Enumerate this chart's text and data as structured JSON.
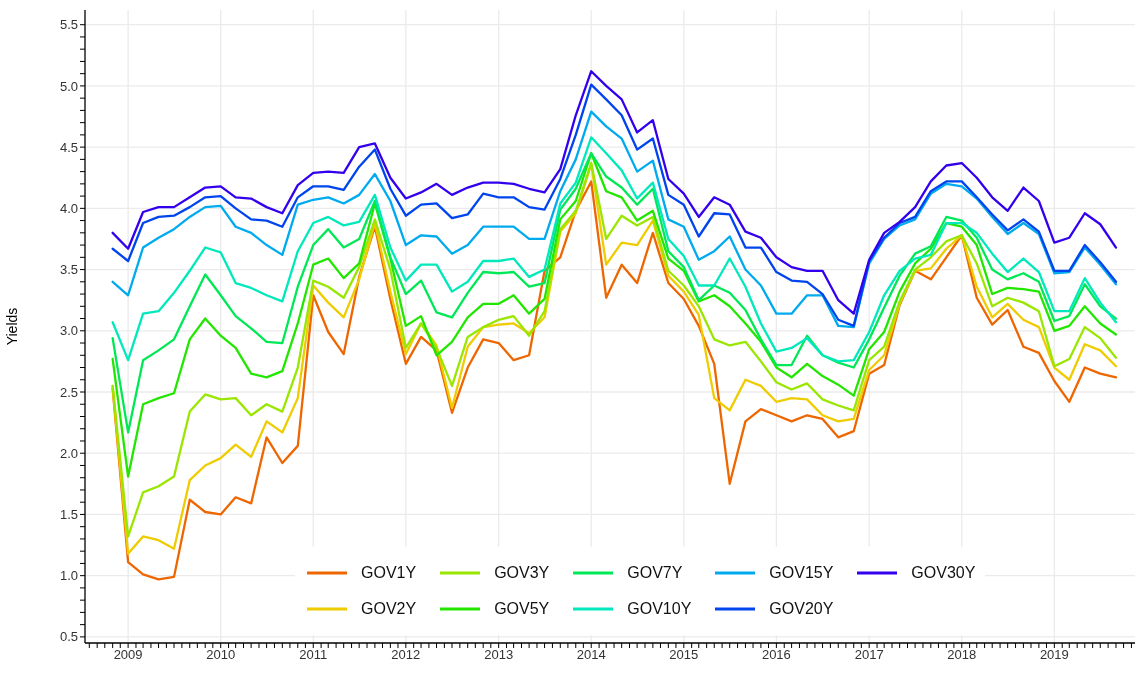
{
  "chart_data": {
    "type": "line",
    "ylabel": "Yields",
    "legend": "bottom",
    "grid": true,
    "xlim": [
      "2008-07-15",
      "2019-11-15"
    ],
    "ylim": [
      0.45,
      5.62
    ],
    "yticks": [
      0.5,
      {
        "value": 1,
        "label": "1.0"
      },
      1.5,
      {
        "value": 2,
        "label": "2.0"
      },
      2.5,
      {
        "value": 3,
        "label": "3.0"
      },
      3.5,
      {
        "value": 4,
        "label": "4.0"
      },
      4.5,
      {
        "value": 5,
        "label": "5.0"
      },
      5.5,
      {
        "value": 0.6,
        "label": null
      },
      {
        "value": 0.7,
        "label": null
      },
      {
        "value": 0.8,
        "label": null
      },
      {
        "value": 0.9,
        "label": null
      },
      {
        "value": 1.1,
        "label": null
      },
      {
        "value": 1.2,
        "label": null
      },
      {
        "value": 1.3,
        "label": null
      },
      {
        "value": 1.4,
        "label": null
      },
      {
        "value": 1.6,
        "label": null
      },
      {
        "value": 1.7,
        "label": null
      },
      {
        "value": 1.8,
        "label": null
      },
      {
        "value": 1.9,
        "label": null
      },
      {
        "value": 2.1,
        "label": null
      },
      {
        "value": 2.2,
        "label": null
      },
      {
        "value": 2.3,
        "label": null
      },
      {
        "value": 2.4,
        "label": null
      },
      {
        "value": 2.6,
        "label": null
      },
      {
        "value": 2.7,
        "label": null
      },
      {
        "value": 2.8,
        "label": null
      },
      {
        "value": 2.9,
        "label": null
      },
      {
        "value": 3.1,
        "label": null
      },
      {
        "value": 3.2,
        "label": null
      },
      {
        "value": 3.3,
        "label": null
      },
      {
        "value": 3.4,
        "label": null
      },
      {
        "value": 3.6,
        "label": null
      },
      {
        "value": 3.7,
        "label": null
      },
      {
        "value": 3.8,
        "label": null
      },
      {
        "value": 3.9,
        "label": null
      },
      {
        "value": 4.1,
        "label": null
      },
      {
        "value": 4.2,
        "label": null
      },
      {
        "value": 4.3,
        "label": null
      },
      {
        "value": 4.4,
        "label": null
      },
      {
        "value": 4.6,
        "label": null
      },
      {
        "value": 4.7,
        "label": null
      },
      {
        "value": 4.8,
        "label": null
      },
      {
        "value": 4.9,
        "label": null
      },
      {
        "value": 5.1,
        "label": null
      },
      {
        "value": 5.2,
        "label": null
      },
      {
        "value": 5.3,
        "label": null
      },
      {
        "value": 5.4,
        "label": null
      }
    ],
    "xticks": [
      "2009",
      "2010",
      "2011",
      "2012",
      "2013",
      "2014",
      "2015",
      "2016",
      "2017",
      "2018",
      "2019",
      {
        "value": "2008-08",
        "label": null
      },
      {
        "value": "2008-09",
        "label": null
      },
      {
        "value": "2008-10",
        "label": null
      },
      {
        "value": "2008-11",
        "label": null
      },
      {
        "value": "2008-12",
        "label": null
      },
      {
        "value": "2009-02",
        "label": null
      },
      {
        "value": "2009-03",
        "label": null
      },
      {
        "value": "2009-04",
        "label": null
      },
      {
        "value": "2009-05",
        "label": null
      },
      {
        "value": "2009-06",
        "label": null
      },
      {
        "value": "2009-07",
        "label": null
      },
      {
        "value": "2009-08",
        "label": null
      },
      {
        "value": "2009-09",
        "label": null
      },
      {
        "value": "2009-10",
        "label": null
      },
      {
        "value": "2009-11",
        "label": null
      },
      {
        "value": "2009-12",
        "label": null
      },
      {
        "value": "2010-02",
        "label": null
      },
      {
        "value": "2010-03",
        "label": null
      },
      {
        "value": "2010-04",
        "label": null
      },
      {
        "value": "2010-05",
        "label": null
      },
      {
        "value": "2010-06",
        "label": null
      },
      {
        "value": "2010-07",
        "label": null
      },
      {
        "value": "2010-08",
        "label": null
      },
      {
        "value": "2010-09",
        "label": null
      },
      {
        "value": "2010-10",
        "label": null
      },
      {
        "value": "2010-11",
        "label": null
      },
      {
        "value": "2010-12",
        "label": null
      },
      {
        "value": "2011-02",
        "label": null
      },
      {
        "value": "2011-03",
        "label": null
      },
      {
        "value": "2011-04",
        "label": null
      },
      {
        "value": "2011-05",
        "label": null
      },
      {
        "value": "2011-06",
        "label": null
      },
      {
        "value": "2011-07",
        "label": null
      },
      {
        "value": "2011-08",
        "label": null
      },
      {
        "value": "2011-09",
        "label": null
      },
      {
        "value": "2011-10",
        "label": null
      },
      {
        "value": "2011-11",
        "label": null
      },
      {
        "value": "2011-12",
        "label": null
      },
      {
        "value": "2012-02",
        "label": null
      },
      {
        "value": "2012-03",
        "label": null
      },
      {
        "value": "2012-04",
        "label": null
      },
      {
        "value": "2012-05",
        "label": null
      },
      {
        "value": "2012-06",
        "label": null
      },
      {
        "value": "2012-07",
        "label": null
      },
      {
        "value": "2012-08",
        "label": null
      },
      {
        "value": "2012-09",
        "label": null
      },
      {
        "value": "2012-10",
        "label": null
      },
      {
        "value": "2012-11",
        "label": null
      },
      {
        "value": "2012-12",
        "label": null
      },
      {
        "value": "2013-02",
        "label": null
      },
      {
        "value": "2013-03",
        "label": null
      },
      {
        "value": "2013-04",
        "label": null
      },
      {
        "value": "2013-05",
        "label": null
      },
      {
        "value": "2013-06",
        "label": null
      },
      {
        "value": "2013-07",
        "label": null
      },
      {
        "value": "2013-08",
        "label": null
      },
      {
        "value": "2013-09",
        "label": null
      },
      {
        "value": "2013-10",
        "label": null
      },
      {
        "value": "2013-11",
        "label": null
      },
      {
        "value": "2013-12",
        "label": null
      },
      {
        "value": "2014-02",
        "label": null
      },
      {
        "value": "2014-03",
        "label": null
      },
      {
        "value": "2014-04",
        "label": null
      },
      {
        "value": "2014-05",
        "label": null
      },
      {
        "value": "2014-06",
        "label": null
      },
      {
        "value": "2014-07",
        "label": null
      },
      {
        "value": "2014-08",
        "label": null
      },
      {
        "value": "2014-09",
        "label": null
      },
      {
        "value": "2014-10",
        "label": null
      },
      {
        "value": "2014-11",
        "label": null
      },
      {
        "value": "2014-12",
        "label": null
      },
      {
        "value": "2015-02",
        "label": null
      },
      {
        "value": "2015-03",
        "label": null
      },
      {
        "value": "2015-04",
        "label": null
      },
      {
        "value": "2015-05",
        "label": null
      },
      {
        "value": "2015-06",
        "label": null
      },
      {
        "value": "2015-07",
        "label": null
      },
      {
        "value": "2015-08",
        "label": null
      },
      {
        "value": "2015-09",
        "label": null
      },
      {
        "value": "2015-10",
        "label": null
      },
      {
        "value": "2015-11",
        "label": null
      },
      {
        "value": "2015-12",
        "label": null
      },
      {
        "value": "2016-02",
        "label": null
      },
      {
        "value": "2016-03",
        "label": null
      },
      {
        "value": "2016-04",
        "label": null
      },
      {
        "value": "2016-05",
        "label": null
      },
      {
        "value": "2016-06",
        "label": null
      },
      {
        "value": "2016-07",
        "label": null
      },
      {
        "value": "2016-08",
        "label": null
      },
      {
        "value": "2016-09",
        "label": null
      },
      {
        "value": "2016-10",
        "label": null
      },
      {
        "value": "2016-11",
        "label": null
      },
      {
        "value": "2016-12",
        "label": null
      },
      {
        "value": "2017-02",
        "label": null
      },
      {
        "value": "2017-03",
        "label": null
      },
      {
        "value": "2017-04",
        "label": null
      },
      {
        "value": "2017-05",
        "label": null
      },
      {
        "value": "2017-06",
        "label": null
      },
      {
        "value": "2017-07",
        "label": null
      },
      {
        "value": "2017-08",
        "label": null
      },
      {
        "value": "2017-09",
        "label": null
      },
      {
        "value": "2017-10",
        "label": null
      },
      {
        "value": "2017-11",
        "label": null
      },
      {
        "value": "2017-12",
        "label": null
      },
      {
        "value": "2018-02",
        "label": null
      },
      {
        "value": "2018-03",
        "label": null
      },
      {
        "value": "2018-04",
        "label": null
      },
      {
        "value": "2018-05",
        "label": null
      },
      {
        "value": "2018-06",
        "label": null
      },
      {
        "value": "2018-07",
        "label": null
      },
      {
        "value": "2018-08",
        "label": null
      },
      {
        "value": "2018-09",
        "label": null
      },
      {
        "value": "2018-10",
        "label": null
      },
      {
        "value": "2018-11",
        "label": null
      },
      {
        "value": "2018-12",
        "label": null
      },
      {
        "value": "2019-02",
        "label": null
      },
      {
        "value": "2019-03",
        "label": null
      },
      {
        "value": "2019-04",
        "label": null
      },
      {
        "value": "2019-05",
        "label": null
      },
      {
        "value": "2019-06",
        "label": null
      },
      {
        "value": "2019-07",
        "label": null
      },
      {
        "value": "2019-08",
        "label": null
      },
      {
        "value": "2019-09",
        "label": null
      },
      {
        "value": "2019-10",
        "label": null
      },
      {
        "value": "2019-11",
        "label": null
      }
    ],
    "x": [
      "2008-11",
      "2009-01",
      "2009-03",
      "2009-05",
      "2009-07",
      "2009-09",
      "2009-11",
      "2010-01",
      "2010-03",
      "2010-05",
      "2010-07",
      "2010-09",
      "2010-11",
      "2011-01",
      "2011-03",
      "2011-05",
      "2011-07",
      "2011-09",
      "2011-11",
      "2012-01",
      "2012-03",
      "2012-05",
      "2012-07",
      "2012-09",
      "2012-11",
      "2013-01",
      "2013-03",
      "2013-05",
      "2013-07",
      "2013-09",
      "2013-11",
      "2014-01",
      "2014-03",
      "2014-05",
      "2014-07",
      "2014-09",
      "2014-11",
      "2015-01",
      "2015-03",
      "2015-05",
      "2015-07",
      "2015-09",
      "2015-11",
      "2016-01",
      "2016-03",
      "2016-05",
      "2016-07",
      "2016-09",
      "2016-11",
      "2017-01",
      "2017-03",
      "2017-05",
      "2017-07",
      "2017-09",
      "2017-11",
      "2018-01",
      "2018-03",
      "2018-05",
      "2018-07",
      "2018-09",
      "2018-11",
      "2019-01",
      "2019-03",
      "2019-05",
      "2019-07",
      "2019-09"
    ],
    "series": [
      {
        "name": "GOV1Y",
        "color": "#ee6600",
        "values": [
          2.53,
          1.11,
          1.01,
          0.97,
          0.99,
          1.62,
          1.52,
          1.5,
          1.64,
          1.59,
          2.13,
          1.92,
          2.06,
          3.29,
          2.99,
          2.81,
          3.44,
          3.85,
          3.26,
          2.73,
          2.95,
          2.84,
          2.33,
          2.7,
          2.93,
          2.9,
          2.76,
          2.8,
          3.49,
          3.6,
          3.98,
          4.22,
          3.27,
          3.54,
          3.39,
          3.8,
          3.39,
          3.26,
          3.04,
          2.73,
          1.75,
          2.26,
          2.36,
          2.31,
          2.26,
          2.31,
          2.28,
          2.13,
          2.18,
          2.65,
          2.72,
          3.21,
          3.49,
          3.42,
          3.6,
          3.78,
          3.27,
          3.05,
          3.17,
          2.87,
          2.82,
          2.59,
          2.42,
          2.7,
          2.65,
          2.62
        ]
      },
      {
        "name": "GOV2Y",
        "color": "#eecc00",
        "values": [
          2.55,
          1.18,
          1.32,
          1.29,
          1.22,
          1.78,
          1.9,
          1.96,
          2.07,
          1.97,
          2.26,
          2.17,
          2.45,
          3.37,
          3.23,
          3.11,
          3.42,
          3.88,
          3.32,
          2.81,
          3.06,
          2.88,
          2.37,
          2.87,
          3.03,
          3.05,
          3.06,
          2.98,
          3.11,
          3.81,
          3.96,
          4.36,
          3.54,
          3.72,
          3.7,
          3.9,
          3.45,
          3.32,
          3.13,
          2.45,
          2.35,
          2.6,
          2.55,
          2.42,
          2.45,
          2.44,
          2.31,
          2.26,
          2.28,
          2.68,
          2.8,
          3.22,
          3.49,
          3.51,
          3.67,
          3.78,
          3.36,
          3.11,
          3.22,
          3.09,
          3.03,
          2.7,
          2.6,
          2.89,
          2.84,
          2.71
        ]
      },
      {
        "name": "GOV3Y",
        "color": "#99e600",
        "values": [
          2.55,
          1.32,
          1.68,
          1.73,
          1.81,
          2.34,
          2.48,
          2.44,
          2.45,
          2.31,
          2.4,
          2.34,
          2.7,
          3.41,
          3.36,
          3.27,
          3.52,
          3.91,
          3.5,
          2.86,
          3.06,
          2.86,
          2.55,
          2.95,
          3.03,
          3.09,
          3.12,
          2.96,
          3.16,
          3.83,
          3.98,
          4.37,
          3.75,
          3.94,
          3.86,
          3.93,
          3.49,
          3.37,
          3.2,
          2.93,
          2.88,
          2.91,
          2.75,
          2.58,
          2.52,
          2.57,
          2.44,
          2.39,
          2.35,
          2.76,
          2.87,
          3.24,
          3.5,
          3.6,
          3.73,
          3.78,
          3.55,
          3.2,
          3.27,
          3.23,
          3.16,
          2.71,
          2.77,
          3.03,
          2.94,
          2.78
        ]
      },
      {
        "name": "GOV5Y",
        "color": "#22e600",
        "values": [
          2.77,
          1.81,
          2.4,
          2.45,
          2.49,
          2.93,
          3.1,
          2.96,
          2.86,
          2.65,
          2.62,
          2.67,
          3.06,
          3.54,
          3.59,
          3.43,
          3.55,
          4.04,
          3.59,
          3.04,
          3.12,
          2.8,
          2.91,
          3.11,
          3.22,
          3.22,
          3.29,
          3.14,
          3.26,
          3.91,
          4.06,
          4.45,
          4.14,
          4.09,
          3.9,
          3.98,
          3.59,
          3.49,
          3.24,
          3.29,
          3.2,
          3.06,
          2.91,
          2.7,
          2.62,
          2.73,
          2.63,
          2.56,
          2.47,
          2.85,
          2.99,
          3.32,
          3.55,
          3.67,
          3.88,
          3.85,
          3.7,
          3.3,
          3.35,
          3.34,
          3.32,
          3.0,
          3.04,
          3.2,
          3.06,
          2.97
        ]
      },
      {
        "name": "GOV7Y",
        "color": "#00e855",
        "values": [
          2.94,
          2.17,
          2.76,
          2.84,
          2.93,
          3.2,
          3.46,
          3.29,
          3.12,
          3.02,
          2.91,
          2.9,
          3.36,
          3.7,
          3.83,
          3.68,
          3.75,
          4.06,
          3.6,
          3.3,
          3.41,
          3.15,
          3.11,
          3.31,
          3.48,
          3.47,
          3.48,
          3.36,
          3.39,
          3.99,
          4.16,
          4.45,
          4.26,
          4.17,
          4.03,
          4.16,
          3.65,
          3.52,
          3.25,
          3.37,
          3.31,
          3.17,
          2.93,
          2.72,
          2.72,
          2.96,
          2.8,
          2.74,
          2.7,
          2.93,
          3.19,
          3.45,
          3.63,
          3.69,
          3.93,
          3.9,
          3.76,
          3.5,
          3.42,
          3.47,
          3.4,
          3.08,
          3.12,
          3.38,
          3.2,
          3.1
        ]
      },
      {
        "name": "GOV10Y",
        "color": "#00e8bb",
        "values": [
          3.07,
          2.76,
          3.14,
          3.16,
          3.31,
          3.49,
          3.68,
          3.64,
          3.39,
          3.35,
          3.29,
          3.24,
          3.65,
          3.88,
          3.93,
          3.86,
          3.89,
          4.11,
          3.68,
          3.41,
          3.54,
          3.54,
          3.32,
          3.4,
          3.57,
          3.57,
          3.59,
          3.44,
          3.5,
          4.04,
          4.21,
          4.58,
          4.45,
          4.31,
          4.08,
          4.21,
          3.75,
          3.61,
          3.37,
          3.37,
          3.59,
          3.36,
          3.06,
          2.83,
          2.86,
          2.94,
          2.8,
          2.75,
          2.76,
          2.99,
          3.29,
          3.49,
          3.59,
          3.62,
          3.88,
          3.88,
          3.8,
          3.63,
          3.48,
          3.59,
          3.48,
          3.16,
          3.16,
          3.43,
          3.23,
          3.07
        ]
      },
      {
        "name": "GOV15Y",
        "color": "#00aaee",
        "values": [
          3.4,
          3.29,
          3.68,
          3.76,
          3.83,
          3.93,
          4.01,
          4.02,
          3.85,
          3.8,
          3.7,
          3.62,
          4.03,
          4.07,
          4.09,
          4.04,
          4.11,
          4.28,
          4.06,
          3.7,
          3.78,
          3.77,
          3.63,
          3.7,
          3.85,
          3.85,
          3.85,
          3.75,
          3.75,
          4.14,
          4.4,
          4.79,
          4.67,
          4.57,
          4.3,
          4.39,
          3.91,
          3.85,
          3.58,
          3.65,
          3.77,
          3.5,
          3.37,
          3.14,
          3.14,
          3.29,
          3.29,
          3.04,
          3.03,
          3.55,
          3.75,
          3.86,
          3.91,
          4.12,
          4.2,
          4.18,
          4.08,
          3.93,
          3.79,
          3.88,
          3.79,
          3.47,
          3.48,
          3.68,
          3.54,
          3.38
        ]
      },
      {
        "name": "GOV20Y",
        "color": "#0044ee",
        "values": [
          3.67,
          3.57,
          3.88,
          3.93,
          3.94,
          4.01,
          4.09,
          4.1,
          4.0,
          3.91,
          3.9,
          3.85,
          4.09,
          4.18,
          4.18,
          4.15,
          4.34,
          4.48,
          4.16,
          3.94,
          4.03,
          4.04,
          3.92,
          3.95,
          4.12,
          4.09,
          4.09,
          4.01,
          3.99,
          4.24,
          4.6,
          5.01,
          4.89,
          4.76,
          4.48,
          4.57,
          4.11,
          4.03,
          3.77,
          3.96,
          3.95,
          3.68,
          3.68,
          3.48,
          3.41,
          3.4,
          3.3,
          3.09,
          3.04,
          3.57,
          3.76,
          3.88,
          3.93,
          4.14,
          4.22,
          4.22,
          4.09,
          3.95,
          3.82,
          3.91,
          3.81,
          3.49,
          3.49,
          3.7,
          3.56,
          3.4
        ]
      },
      {
        "name": "GOV30Y",
        "color": "#3300ee",
        "values": [
          3.8,
          3.67,
          3.97,
          4.01,
          4.01,
          4.09,
          4.17,
          4.18,
          4.09,
          4.08,
          4.01,
          3.96,
          4.19,
          4.29,
          4.3,
          4.29,
          4.5,
          4.53,
          4.25,
          4.08,
          4.13,
          4.2,
          4.11,
          4.17,
          4.21,
          4.21,
          4.2,
          4.16,
          4.13,
          4.32,
          4.76,
          5.12,
          5.0,
          4.89,
          4.62,
          4.72,
          4.24,
          4.12,
          3.93,
          4.09,
          4.03,
          3.81,
          3.76,
          3.6,
          3.52,
          3.49,
          3.49,
          3.25,
          3.14,
          3.58,
          3.8,
          3.89,
          4.01,
          4.22,
          4.35,
          4.37,
          4.25,
          4.09,
          3.98,
          4.17,
          4.06,
          3.72,
          3.76,
          3.96,
          3.87,
          3.68
        ]
      }
    ]
  }
}
